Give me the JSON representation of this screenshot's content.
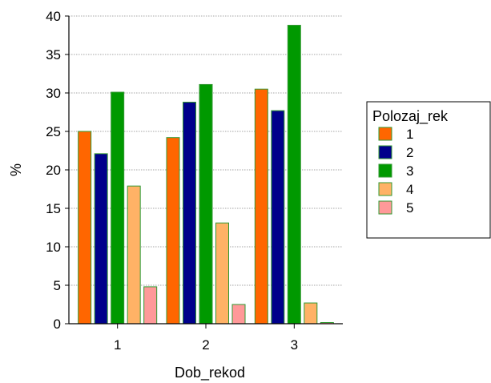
{
  "chart_data": {
    "type": "bar",
    "title": "",
    "xlabel": "Dob_rekod",
    "ylabel": "%",
    "categories": [
      "1",
      "2",
      "3"
    ],
    "ylim": [
      0,
      40
    ],
    "yticks": [
      "0",
      "5",
      "10",
      "15",
      "20",
      "25",
      "30",
      "35",
      "40"
    ],
    "grid": "horizontal-dotted",
    "legend": {
      "title": "Polozaj_rek",
      "placement": "right"
    },
    "series": [
      {
        "name": "1",
        "color": "#ff6600",
        "values": [
          25.0,
          24.2,
          30.5
        ]
      },
      {
        "name": "2",
        "color": "#00008b",
        "values": [
          22.1,
          28.8,
          27.7
        ]
      },
      {
        "name": "3",
        "color": "#009900",
        "values": [
          30.1,
          31.1,
          38.8
        ]
      },
      {
        "name": "4",
        "color": "#ffb266",
        "values": [
          17.9,
          13.1,
          2.7
        ]
      },
      {
        "name": "5",
        "color": "#ff9999",
        "values": [
          4.8,
          2.5,
          0.0
        ]
      }
    ],
    "bar_outline_color": "#339933"
  }
}
